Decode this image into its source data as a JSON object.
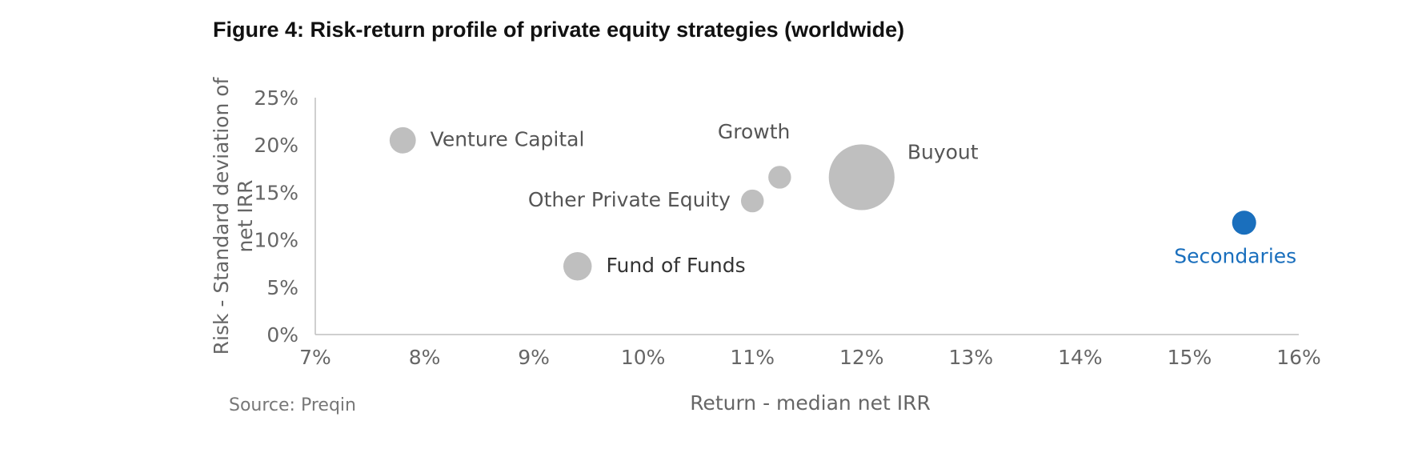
{
  "title": "Figure 4: Risk-return profile of private equity strategies (worldwide)",
  "source": "Source: Preqin",
  "chart_data": {
    "type": "scatter",
    "title": "Figure 4: Risk-return profile of private equity strategies (worldwide)",
    "xlabel": "Return - median net IRR",
    "ylabel": "Risk - Standard deviation of net IRR",
    "xlim": [
      7,
      16
    ],
    "ylim": [
      0,
      25
    ],
    "x_ticks": [
      7,
      8,
      9,
      10,
      11,
      12,
      13,
      14,
      15,
      16
    ],
    "y_ticks": [
      0,
      5,
      10,
      15,
      20,
      25
    ],
    "x_tick_labels": [
      "7%",
      "8%",
      "9%",
      "10%",
      "11%",
      "12%",
      "13%",
      "14%",
      "15%",
      "16%"
    ],
    "y_tick_labels": [
      "0%",
      "5%",
      "10%",
      "15%",
      "20%",
      "25%"
    ],
    "grid": false,
    "points": [
      {
        "name": "Venture Capital",
        "x": 7.8,
        "y": 20.5,
        "size": 1.2,
        "color": "#bfbfbf",
        "label_color": "#555555",
        "label_pos": "right"
      },
      {
        "name": "Growth",
        "x": 11.25,
        "y": 16.6,
        "size": 0.9,
        "color": "#bfbfbf",
        "label_color": "#555555",
        "label_pos": "above-left"
      },
      {
        "name": "Buyout",
        "x": 12.0,
        "y": 16.6,
        "size": 7.5,
        "color": "#bfbfbf",
        "label_color": "#555555",
        "label_pos": "upper-right"
      },
      {
        "name": "Other Private Equity",
        "x": 11.0,
        "y": 14.1,
        "size": 0.9,
        "color": "#bfbfbf",
        "label_color": "#555555",
        "label_pos": "left"
      },
      {
        "name": "Fund of Funds",
        "x": 9.4,
        "y": 7.2,
        "size": 1.4,
        "color": "#bfbfbf",
        "label_color": "#333333",
        "label_pos": "right"
      },
      {
        "name": "Secondaries",
        "x": 15.5,
        "y": 11.8,
        "size": 1.0,
        "color": "#1a6fbd",
        "label_color": "#1a6fbd",
        "label_pos": "below"
      }
    ]
  }
}
